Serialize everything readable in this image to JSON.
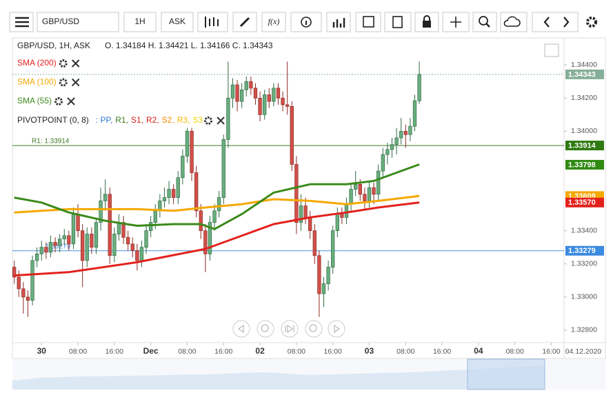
{
  "toolbar": {
    "symbol": "GBP/USD",
    "timeframe": "1H",
    "price_side": "ASK",
    "function_button": "f(x)"
  },
  "chart_data": {
    "type": "candlestick",
    "title": "GBP/USD, 1H, ASK",
    "ohlc_text": "O. 1.34184 H. 1.34421 L. 1.34166 C. 1.34343",
    "open": [
      1.3318,
      1.3312,
      1.3305,
      1.33,
      1.3298,
      1.3322,
      1.3326,
      1.333,
      1.3327,
      1.3333,
      1.3331,
      1.3335,
      1.3337,
      1.3332,
      1.335,
      1.334,
      1.3322,
      1.3338,
      1.333,
      1.3345,
      1.3358,
      1.3362,
      1.3325,
      1.3338,
      1.3345,
      1.3336,
      1.3332,
      1.3328,
      1.3322,
      1.333,
      1.334,
      1.3345,
      1.3352,
      1.3358,
      1.336,
      1.3365,
      1.336,
      1.3372,
      1.3385,
      1.34,
      1.3375,
      1.3352,
      1.334,
      1.3326,
      1.3345,
      1.3352,
      1.336,
      1.3395,
      1.342,
      1.3428,
      1.3418,
      1.3425,
      1.343,
      1.3426,
      1.342,
      1.341,
      1.3422,
      1.3418,
      1.3426,
      1.342,
      1.3416,
      1.3415,
      1.338,
      1.3345,
      1.3355,
      1.3348,
      1.334,
      1.3325,
      1.3302,
      1.3308,
      1.3318,
      1.334,
      1.335,
      1.3348,
      1.3356,
      1.3365,
      1.3368,
      1.3362,
      1.3358,
      1.3366,
      1.3362,
      1.3376,
      1.3386,
      1.3389,
      1.3392,
      1.3396,
      1.34,
      1.3398,
      1.3403,
      1.34184
    ],
    "high": [
      1.3322,
      1.3316,
      1.3309,
      1.3304,
      1.3325,
      1.333,
      1.3334,
      1.3333,
      1.3337,
      1.3336,
      1.3338,
      1.3341,
      1.334,
      1.3354,
      1.3356,
      1.3344,
      1.3342,
      1.3342,
      1.3348,
      1.3366,
      1.3371,
      1.3366,
      1.3342,
      1.335,
      1.3349,
      1.334,
      1.3336,
      1.3332,
      1.3334,
      1.3344,
      1.3349,
      1.3356,
      1.3362,
      1.3366,
      1.337,
      1.3368,
      1.3376,
      1.3389,
      1.3402,
      1.3402,
      1.3379,
      1.3356,
      1.3344,
      1.3349,
      1.3356,
      1.3364,
      1.3398,
      1.3442,
      1.3432,
      1.3431,
      1.3429,
      1.3433,
      1.3433,
      1.3429,
      1.3424,
      1.3425,
      1.3426,
      1.3429,
      1.3429,
      1.3424,
      1.3442,
      1.3418,
      1.3385,
      1.3362,
      1.336,
      1.3352,
      1.3344,
      1.3328,
      1.3312,
      1.3322,
      1.3343,
      1.3354,
      1.3354,
      1.336,
      1.3369,
      1.3376,
      1.3371,
      1.3366,
      1.337,
      1.3369,
      1.338,
      1.339,
      1.3393,
      1.3396,
      1.3402,
      1.3408,
      1.3404,
      1.3408,
      1.3422,
      1.34421
    ],
    "low": [
      1.3308,
      1.33,
      1.329,
      1.3288,
      1.3295,
      1.3318,
      1.3322,
      1.3323,
      1.3324,
      1.3327,
      1.3327,
      1.3331,
      1.3328,
      1.3329,
      1.3336,
      1.3306,
      1.3318,
      1.3326,
      1.3326,
      1.334,
      1.3352,
      1.332,
      1.3321,
      1.3334,
      1.3332,
      1.3328,
      1.3324,
      1.3316,
      1.3318,
      1.3326,
      1.3336,
      1.3341,
      1.3348,
      1.3354,
      1.3356,
      1.3356,
      1.3356,
      1.3368,
      1.3381,
      1.337,
      1.3348,
      1.3335,
      1.3315,
      1.3322,
      1.334,
      1.3348,
      1.3356,
      1.339,
      1.3414,
      1.3412,
      1.3414,
      1.3421,
      1.3422,
      1.3416,
      1.3406,
      1.3407,
      1.3414,
      1.3415,
      1.3416,
      1.3412,
      1.341,
      1.3376,
      1.3338,
      1.334,
      1.3344,
      1.3335,
      1.332,
      1.3288,
      1.3294,
      1.3304,
      1.3314,
      1.3336,
      1.3344,
      1.3344,
      1.3352,
      1.3361,
      1.3358,
      1.3352,
      1.3354,
      1.3356,
      1.3358,
      1.3372,
      1.338,
      1.3384,
      1.3386,
      1.3392,
      1.339,
      1.3394,
      1.34,
      1.34166
    ],
    "close": [
      1.3312,
      1.3305,
      1.33,
      1.3298,
      1.3322,
      1.3326,
      1.333,
      1.3327,
      1.3333,
      1.3331,
      1.3335,
      1.3337,
      1.3332,
      1.335,
      1.334,
      1.3322,
      1.3338,
      1.333,
      1.3345,
      1.3358,
      1.3362,
      1.3325,
      1.3338,
      1.3345,
      1.3336,
      1.3332,
      1.3328,
      1.3322,
      1.333,
      1.334,
      1.3345,
      1.3352,
      1.3358,
      1.336,
      1.3365,
      1.336,
      1.3372,
      1.3385,
      1.34,
      1.3375,
      1.3352,
      1.334,
      1.3326,
      1.3345,
      1.3352,
      1.336,
      1.3395,
      1.342,
      1.3428,
      1.3418,
      1.3425,
      1.343,
      1.3426,
      1.342,
      1.341,
      1.3422,
      1.3418,
      1.3426,
      1.342,
      1.3416,
      1.3415,
      1.338,
      1.3345,
      1.3355,
      1.3348,
      1.334,
      1.3325,
      1.3302,
      1.3308,
      1.3318,
      1.334,
      1.335,
      1.3348,
      1.3356,
      1.3365,
      1.3368,
      1.3362,
      1.3358,
      1.3366,
      1.3362,
      1.3376,
      1.3386,
      1.3389,
      1.3392,
      1.3396,
      1.34,
      1.3398,
      1.3403,
      1.34184,
      1.34343
    ],
    "up_color": "#6aae7f",
    "down_color": "#d2504a",
    "xlim": [
      -0.4,
      120.8
    ],
    "xticks": [
      {
        "value": 6,
        "label": "30"
      },
      {
        "value": 14,
        "label": "08:00"
      },
      {
        "value": 22,
        "label": "16:00"
      },
      {
        "value": 30,
        "label": "Dec"
      },
      {
        "value": 38,
        "label": "08:00"
      },
      {
        "value": 46,
        "label": "16:00"
      },
      {
        "value": 54,
        "label": "02"
      },
      {
        "value": 62,
        "label": "08:00"
      },
      {
        "value": 70,
        "label": "16:00"
      },
      {
        "value": 78,
        "label": "03"
      },
      {
        "value": 86,
        "label": "08:00"
      },
      {
        "value": 94,
        "label": "16:00"
      },
      {
        "value": 102,
        "label": "04"
      },
      {
        "value": 110,
        "label": "08:00"
      },
      {
        "value": 118,
        "label": "16:00"
      }
    ],
    "x_end_label": "04.12.2020",
    "ylim": [
      1.32725,
      1.34563
    ],
    "yticks": [
      {
        "value": 1.344,
        "label": "1.34400"
      },
      {
        "value": 1.342,
        "label": "1.34200"
      },
      {
        "value": 1.34,
        "label": "1.34000"
      },
      {
        "value": 1.334,
        "label": "1.33400"
      },
      {
        "value": 1.332,
        "label": "1.33200"
      },
      {
        "value": 1.33,
        "label": "1.33000"
      },
      {
        "value": 1.328,
        "label": "1.32800"
      }
    ],
    "grid": false,
    "series": [
      {
        "name": "SMA (200)",
        "color": "#e3211c",
        "x": [
          0,
          12,
          27,
          42,
          50,
          57,
          65,
          73,
          80,
          89
        ],
        "values": [
          1.3313,
          1.3315,
          1.3321,
          1.3329,
          1.3337,
          1.3344,
          1.3348,
          1.3351,
          1.3354,
          1.3357
        ]
      },
      {
        "name": "SMA (100)",
        "color": "#f5a800",
        "x": [
          0,
          12,
          27,
          35,
          42,
          50,
          57,
          65,
          73,
          80,
          89
        ],
        "values": [
          1.3351,
          1.3353,
          1.3353,
          1.3352,
          1.3354,
          1.3356,
          1.3359,
          1.3358,
          1.3356,
          1.3358,
          1.3361
        ]
      },
      {
        "name": "SMA (55)",
        "color": "#3a8a1a",
        "x": [
          0,
          6,
          12,
          20,
          27,
          35,
          41,
          44,
          50,
          57,
          65,
          73,
          79,
          83,
          89
        ],
        "values": [
          1.336,
          1.3357,
          1.3351,
          1.3346,
          1.3343,
          1.3344,
          1.3344,
          1.3341,
          1.335,
          1.3363,
          1.3368,
          1.3368,
          1.337,
          1.3374,
          1.338
        ]
      }
    ],
    "pivot": {
      "name": "PIVOTPOINT (0, 8)",
      "parts": [
        {
          "label": ": PP,",
          "color": "#2a7ad5"
        },
        {
          "label": "R1,",
          "color": "#3a7a20"
        },
        {
          "label": "S1,",
          "color": "#d0201c"
        },
        {
          "label": "R2,",
          "color": "#d0201c"
        },
        {
          "label": "S2,",
          "color": "#f08a00"
        },
        {
          "label": "R3,",
          "color": "#f5b800"
        },
        {
          "label": "S3",
          "color": "#f5d000"
        }
      ]
    },
    "levels": [
      {
        "label": "R1: 1.33914",
        "value": 1.33914,
        "color": "#3c7a20"
      },
      {
        "label": "1.33279",
        "value": 1.33279,
        "color": "#4a8fdc"
      }
    ],
    "current_price": 1.34343,
    "price_labels": [
      {
        "value": 1.34343,
        "label": "1.34343",
        "color": "#86ae98"
      },
      {
        "value": 1.33914,
        "label": "1.33914",
        "color": "#2f7a12"
      },
      {
        "value": 1.33798,
        "label": "1.33798",
        "color": "#2f8a12"
      },
      {
        "value": 1.33609,
        "label": "1.33609",
        "color": "#f5a800"
      },
      {
        "value": 1.3357,
        "label": "1.33570",
        "color": "#e3211c"
      },
      {
        "value": 1.33279,
        "label": "1.33279",
        "color": "#3b8ae0"
      }
    ]
  }
}
